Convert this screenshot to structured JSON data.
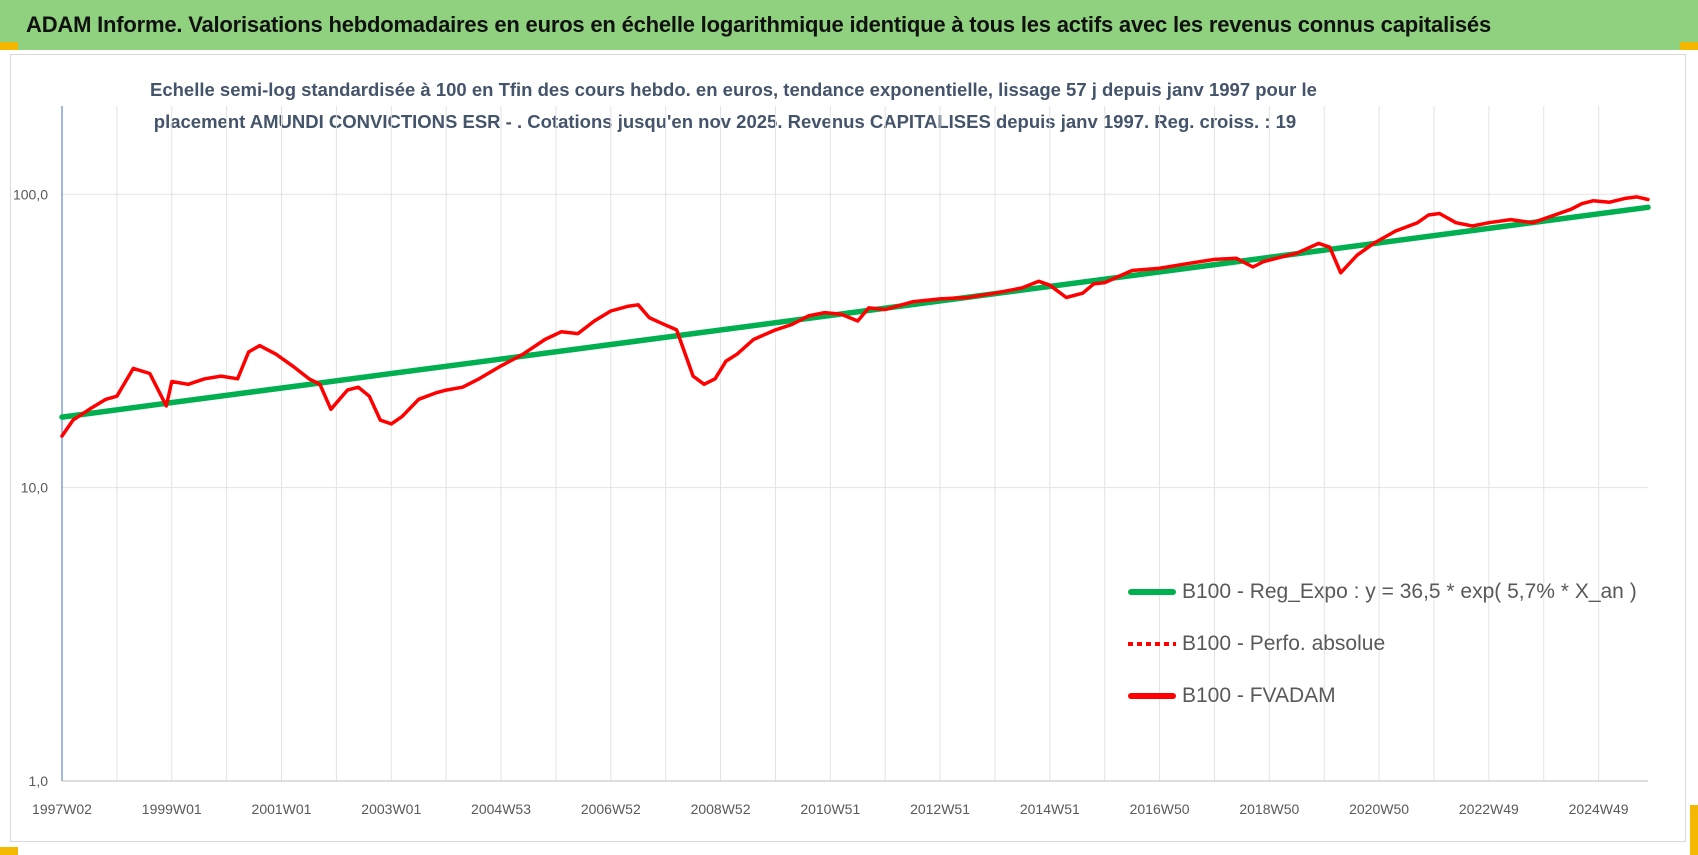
{
  "banner": {
    "title": "ADAM Informe. Valorisations hebdomadaires en euros en échelle logarithmique identique à tous les actifs avec les revenus connus capitalisés"
  },
  "colors": {
    "banner_bg": "#8fd17f",
    "corner_accent": "#f5b800",
    "trend_green": "#00b050",
    "series_red": "#ff0000",
    "title_text": "#44546a"
  },
  "chart_data": {
    "type": "line",
    "title_line1": "Echelle semi-log standardisée à 100 en Tfin des cours hebdo. en euros, tendance exponentielle, lissage 57 j depuis janv 1997 pour le",
    "title_line2": "placement AMUNDI CONVICTIONS ESR - . Cotations jusqu'en nov 2025. Revenus CAPITALISES depuis janv 1997. Reg. croiss. : 19",
    "yscale": "log",
    "ylim": [
      1,
      200
    ],
    "y_ticks": [
      1,
      10,
      100
    ],
    "y_tick_labels": [
      "1,0",
      "10,0",
      "100,0"
    ],
    "x_range": [
      1997.0,
      2025.9
    ],
    "x_tick_years": [
      1997.0,
      1999.0,
      2001.0,
      2003.0,
      2005.0,
      2007.0,
      2009.0,
      2011.0,
      2013.0,
      2015.0,
      2017.0,
      2019.0,
      2021.0,
      2023.0,
      2025.0
    ],
    "x_tick_labels": [
      "1997W02",
      "1999W01",
      "2001W01",
      "2003W01",
      "2004W53",
      "2006W52",
      "2008W52",
      "2010W51",
      "2012W51",
      "2014W51",
      "2016W50",
      "2018W50",
      "2020W50",
      "2022W49",
      "2024W49"
    ],
    "grid": "vertical and horizontal",
    "legend_position": "bottom-right",
    "series": [
      {
        "name": "B100 - Reg_Expo : y = 36,5 * exp( 5,7% *  X_an )",
        "style": "solid",
        "color": "#00b050",
        "x": [
          1997.0,
          2025.9
        ],
        "values": [
          17.4,
          90.3
        ]
      },
      {
        "name": "B100 - Perfo. absolue",
        "style": "dotted",
        "color": "#ff0000",
        "x": [],
        "values": []
      },
      {
        "name": "B100 - FVADAM",
        "style": "solid",
        "color": "#ff0000",
        "x": [
          1997.0,
          1997.2,
          1997.5,
          1997.8,
          1998.0,
          1998.3,
          1998.6,
          1998.9,
          1999.0,
          1999.3,
          1999.6,
          1999.9,
          2000.2,
          2000.4,
          2000.6,
          2000.9,
          2001.2,
          2001.5,
          2001.7,
          2001.9,
          2002.2,
          2002.4,
          2002.6,
          2002.8,
          2003.0,
          2003.2,
          2003.5,
          2003.8,
          2004.0,
          2004.3,
          2004.6,
          2005.0,
          2005.4,
          2005.8,
          2006.1,
          2006.4,
          2006.7,
          2007.0,
          2007.3,
          2007.5,
          2007.7,
          2007.9,
          2008.2,
          2008.5,
          2008.7,
          2008.9,
          2009.1,
          2009.3,
          2009.6,
          2010.0,
          2010.3,
          2010.6,
          2010.9,
          2011.2,
          2011.5,
          2011.7,
          2012.0,
          2012.5,
          2013.0,
          2013.5,
          2014.0,
          2014.5,
          2014.8,
          2015.0,
          2015.3,
          2015.6,
          2015.8,
          2016.0,
          2016.5,
          2017.0,
          2017.5,
          2018.0,
          2018.4,
          2018.7,
          2018.9,
          2019.2,
          2019.5,
          2019.9,
          2020.1,
          2020.3,
          2020.6,
          2020.9,
          2021.3,
          2021.7,
          2021.9,
          2022.1,
          2022.4,
          2022.7,
          2023.0,
          2023.4,
          2023.8,
          2024.2,
          2024.5,
          2024.7,
          2024.9,
          2025.2,
          2025.5,
          2025.7,
          2025.9
        ],
        "values": [
          15.0,
          17.0,
          18.5,
          20.0,
          20.5,
          25.5,
          24.5,
          19.0,
          23.0,
          22.5,
          23.5,
          24.0,
          23.5,
          29.0,
          30.5,
          28.5,
          26.0,
          23.5,
          22.5,
          18.5,
          21.5,
          22.0,
          20.5,
          17.0,
          16.5,
          17.5,
          20.0,
          21.0,
          21.5,
          22.0,
          23.5,
          26.0,
          28.5,
          32.0,
          34.0,
          33.5,
          37.0,
          40.0,
          41.5,
          42.0,
          38.0,
          36.5,
          34.5,
          24.0,
          22.5,
          23.5,
          27.0,
          28.5,
          32.0,
          34.5,
          36.0,
          38.5,
          39.5,
          39.0,
          37.0,
          41.0,
          40.5,
          43.0,
          44.0,
          44.5,
          46.0,
          48.0,
          50.5,
          49.0,
          44.5,
          46.0,
          49.5,
          50.0,
          55.0,
          56.0,
          58.0,
          60.0,
          60.5,
          56.5,
          59.0,
          61.0,
          63.0,
          68.0,
          66.0,
          54.0,
          62.0,
          68.0,
          75.0,
          80.0,
          85.0,
          86.0,
          80.0,
          78.0,
          80.0,
          82.0,
          80.0,
          85.0,
          89.0,
          93.0,
          95.0,
          94.0,
          97.0,
          98.0,
          96.0
        ]
      }
    ]
  },
  "legend": {
    "items": [
      {
        "label": "B100 - Reg_Expo : y = 36,5 * exp( 5,7% *  X_an )"
      },
      {
        "label": "B100 - Perfo. absolue"
      },
      {
        "label": "B100 - FVADAM"
      }
    ]
  }
}
